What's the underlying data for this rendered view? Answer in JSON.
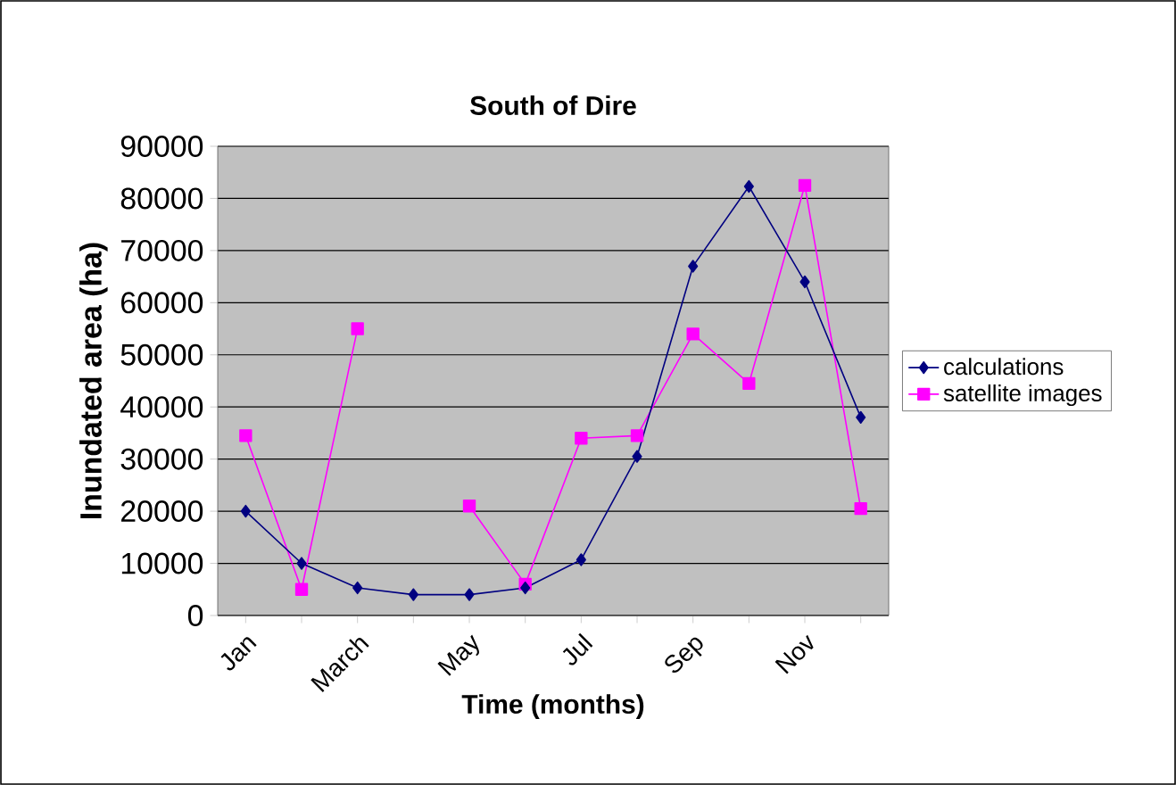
{
  "chart_data": {
    "type": "line",
    "title": "South of Dire",
    "xlabel": "Time (months)",
    "ylabel": "Inundated area (ha)",
    "categories": [
      "Jan",
      null,
      "March",
      null,
      "May",
      null,
      "Jul",
      null,
      "Sep",
      null,
      "Nov",
      null
    ],
    "series": [
      {
        "name": "calculations",
        "color": "#000080",
        "marker": "diamond",
        "values": [
          20000,
          10000,
          5300,
          4000,
          4000,
          5300,
          10700,
          30500,
          67000,
          82300,
          64000,
          38000
        ]
      },
      {
        "name": "satellite images",
        "color": "#ff00ff",
        "marker": "square",
        "values": [
          34500,
          5000,
          55000,
          null,
          21000,
          6000,
          34000,
          34500,
          54000,
          44500,
          82500,
          20500
        ]
      }
    ],
    "ylim": [
      0,
      90000
    ],
    "yticks": [
      0,
      10000,
      20000,
      30000,
      40000,
      50000,
      60000,
      70000,
      80000,
      90000
    ],
    "grid": "y",
    "legend": "right",
    "line_style": "solid"
  }
}
